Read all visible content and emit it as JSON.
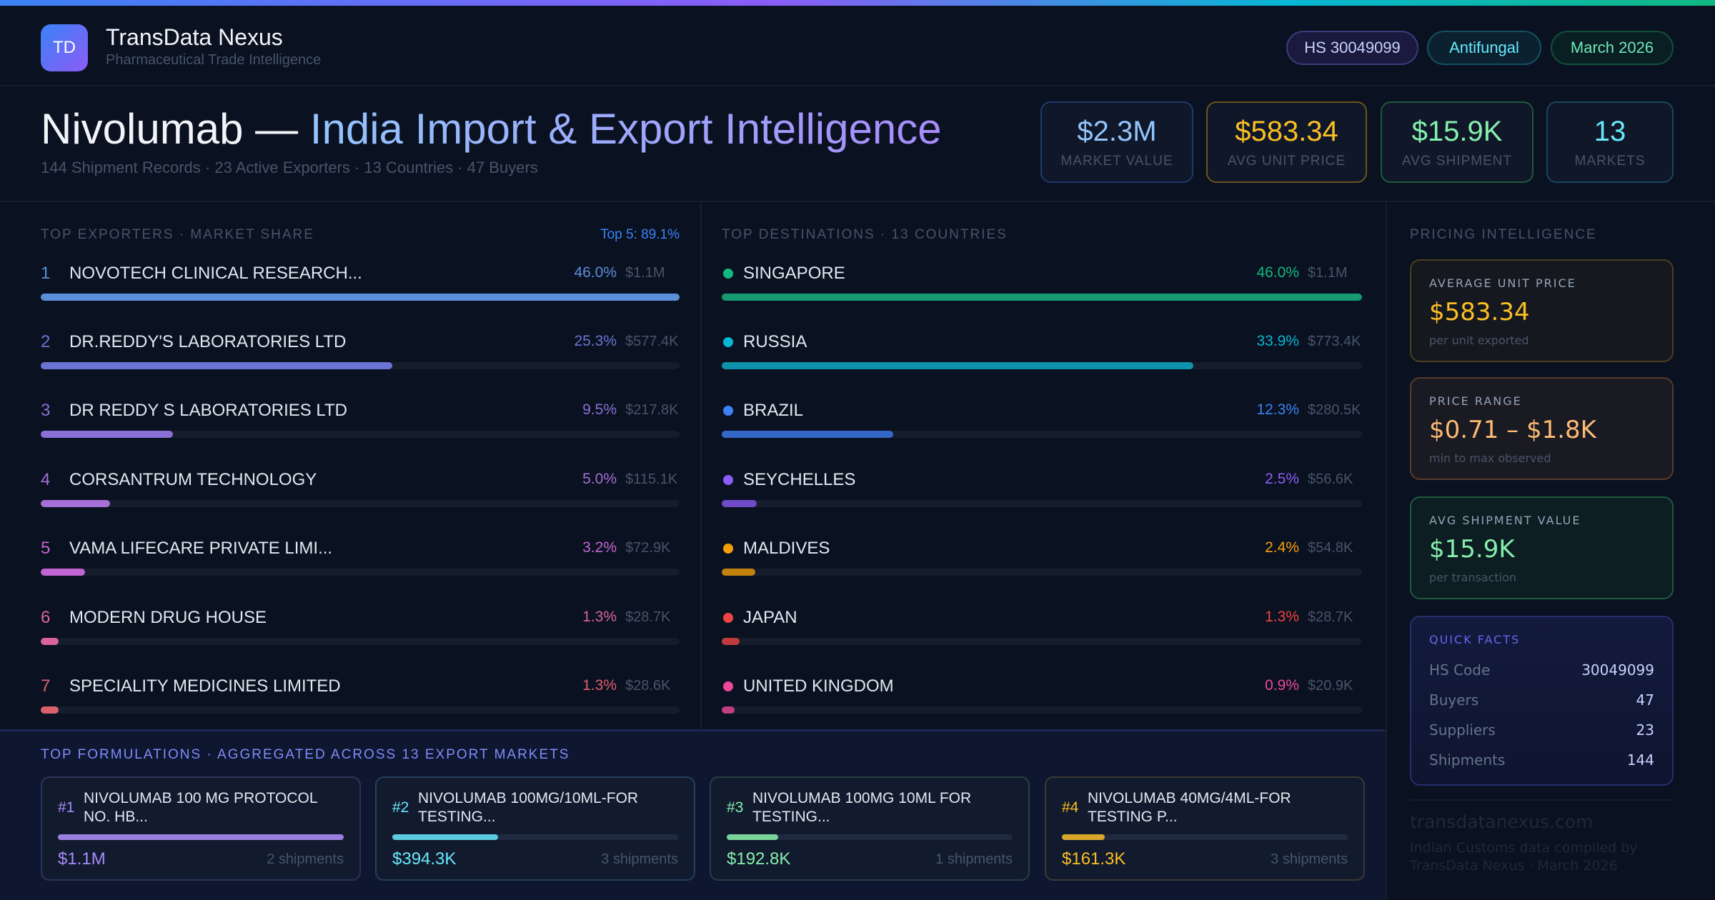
{
  "colors": {
    "accent_gradient": [
      "#3b82f6",
      "#8b5cf6",
      "#06b6d4",
      "#10b981"
    ],
    "background": "#0a1120"
  },
  "brand": {
    "logo_text": "TD",
    "name": "TransData Nexus",
    "tagline": "Pharmaceutical Trade Intelligence"
  },
  "pills": [
    {
      "label": "HS 30049099",
      "color": "#c7d2fe",
      "border": "#3b3a7a",
      "bg": "#1a1a3e"
    },
    {
      "label": "Antifungal",
      "color": "#67e8f9",
      "border": "#164e63",
      "bg": "#0b2130"
    },
    {
      "label": "March 2026",
      "color": "#6ee7b7",
      "border": "#134e3a",
      "bg": "#0a1f24"
    }
  ],
  "hero": {
    "title_main": "Nivolumab — ",
    "title_accent": "India Import & Export Intelligence",
    "subtitle": "144 Shipment Records · 23 Active Exporters · 13 Countries · 47 Buyers"
  },
  "kpis": [
    {
      "value": "$2.3M",
      "label": "MARKET VALUE",
      "color": "#93c5fd",
      "border": "#1e3a6a"
    },
    {
      "value": "$583.34",
      "label": "AVG UNIT PRICE",
      "color": "#fbbf24",
      "border": "#6b5420"
    },
    {
      "value": "$15.9K",
      "label": "AVG SHIPMENT",
      "color": "#86efac",
      "border": "#1c5a3c"
    },
    {
      "value": "13",
      "label": "MARKETS",
      "color": "#67e8f9",
      "border": "#17475e"
    }
  ],
  "exporters": {
    "title": "TOP EXPORTERS · MARKET SHARE",
    "summary": "Top 5: 89.1%",
    "items": [
      {
        "rank": "1",
        "name": "NOVOTECH CLINICAL RESEARCH...",
        "share_pct": "46.0%",
        "share": 46.0,
        "value": "$1.1M",
        "color": "#5b8fd9"
      },
      {
        "rank": "2",
        "name": "DR.REDDY'S LABORATORIES LTD",
        "share_pct": "25.3%",
        "share": 25.3,
        "value": "$577.4K",
        "color": "#6b73d4"
      },
      {
        "rank": "3",
        "name": "DR REDDY S LABORATORIES LTD",
        "share_pct": "9.5%",
        "share": 9.5,
        "value": "$217.8K",
        "color": "#8a6fd6"
      },
      {
        "rank": "4",
        "name": "CORSANTRUM TECHNOLOGY",
        "share_pct": "5.0%",
        "share": 5.0,
        "value": "$115.1K",
        "color": "#a46fd6"
      },
      {
        "rank": "5",
        "name": "VAMA LIFECARE PRIVATE LIMI...",
        "share_pct": "3.2%",
        "share": 3.2,
        "value": "$72.9K",
        "color": "#c265d4"
      },
      {
        "rank": "6",
        "name": "MODERN DRUG HOUSE",
        "share_pct": "1.3%",
        "share": 1.3,
        "value": "$28.7K",
        "color": "#d9649a"
      },
      {
        "rank": "7",
        "name": "SPECIALITY MEDICINES LIMITED",
        "share_pct": "1.3%",
        "share": 1.3,
        "value": "$28.6K",
        "color": "#dc5f6e"
      }
    ]
  },
  "destinations": {
    "title": "TOP DESTINATIONS · 13 COUNTRIES",
    "items": [
      {
        "name": "SINGAPORE",
        "share_pct": "46.0%",
        "share": 46.0,
        "value": "$1.1M",
        "color": "#10b981",
        "bar": "#159a72"
      },
      {
        "name": "RUSSIA",
        "share_pct": "33.9%",
        "share": 33.9,
        "value": "$773.4K",
        "color": "#06b6d4",
        "bar": "#0e93ad"
      },
      {
        "name": "BRAZIL",
        "share_pct": "12.3%",
        "share": 12.3,
        "value": "$280.5K",
        "color": "#3b82f6",
        "bar": "#3467c8"
      },
      {
        "name": "SEYCHELLES",
        "share_pct": "2.5%",
        "share": 2.5,
        "value": "$56.6K",
        "color": "#8b5cf6",
        "bar": "#6f4bc8"
      },
      {
        "name": "MALDIVES",
        "share_pct": "2.4%",
        "share": 2.4,
        "value": "$54.8K",
        "color": "#f59e0b",
        "bar": "#c1820e"
      },
      {
        "name": "JAPAN",
        "share_pct": "1.3%",
        "share": 1.3,
        "value": "$28.7K",
        "color": "#ef4444",
        "bar": "#bf3b3d"
      },
      {
        "name": "UNITED KINGDOM",
        "share_pct": "0.9%",
        "share": 0.9,
        "value": "$20.9K",
        "color": "#ec4899",
        "bar": "#bf3f80"
      }
    ]
  },
  "formulations": {
    "title": "TOP FORMULATIONS · AGGREGATED ACROSS 13 EXPORT MARKETS",
    "items": [
      {
        "rank": "#1",
        "name": "NIVOLUMAB 100 MG PROTOCOL NO. HB...",
        "value": "$1.1M",
        "shipments": "2 shipments",
        "fill": 1.0,
        "color": "#a78bfa",
        "bar": "#9b7fe0",
        "border": "#2c3358"
      },
      {
        "rank": "#2",
        "name": "NIVOLUMAB 100MG/10ML-FOR TESTING...",
        "value": "$394.3K",
        "shipments": "3 shipments",
        "fill": 0.37,
        "color": "#67e8f9",
        "bar": "#5ccbe0",
        "border": "#24405a"
      },
      {
        "rank": "#3",
        "name": "NIVOLUMAB 100MG 10ML FOR TESTING...",
        "value": "$192.8K",
        "shipments": "1 shipments",
        "fill": 0.18,
        "color": "#86efac",
        "bar": "#79d49a",
        "border": "#26413f"
      },
      {
        "rank": "#4",
        "name": "NIVOLUMAB 40MG/4ML-FOR TESTING P...",
        "value": "$161.3K",
        "shipments": "3 shipments",
        "fill": 0.15,
        "color": "#fbbf24",
        "bar": "#d9a72a",
        "border": "#3c3a30"
      }
    ]
  },
  "pricing": {
    "title": "PRICING INTELLIGENCE",
    "cards": [
      {
        "label": "AVERAGE UNIT PRICE",
        "value": "$583.34",
        "sub": "per unit exported",
        "color": "#fbbf24",
        "border": "#4a4020",
        "bg": "#15181f"
      },
      {
        "label": "PRICE RANGE",
        "value": "$0.71 – $1.8K",
        "sub": "min to max observed",
        "color": "#fdba74",
        "border": "#5a3a28",
        "bg": "#1a1a22"
      },
      {
        "label": "AVG SHIPMENT VALUE",
        "value": "$15.9K",
        "sub": "per transaction",
        "color": "#86efac",
        "border": "#1c5a3c",
        "bg": "#0c1e22"
      }
    ],
    "quick_facts": {
      "title": "QUICK FACTS",
      "rows": [
        {
          "key": "HS Code",
          "value": "30049099"
        },
        {
          "key": "Buyers",
          "value": "47"
        },
        {
          "key": "Suppliers",
          "value": "23"
        },
        {
          "key": "Shipments",
          "value": "144"
        }
      ]
    }
  },
  "footer": {
    "url": "transdatanexus.com",
    "note_1": "Indian Customs data compiled by",
    "note_2": "TransData Nexus · March 2026"
  }
}
